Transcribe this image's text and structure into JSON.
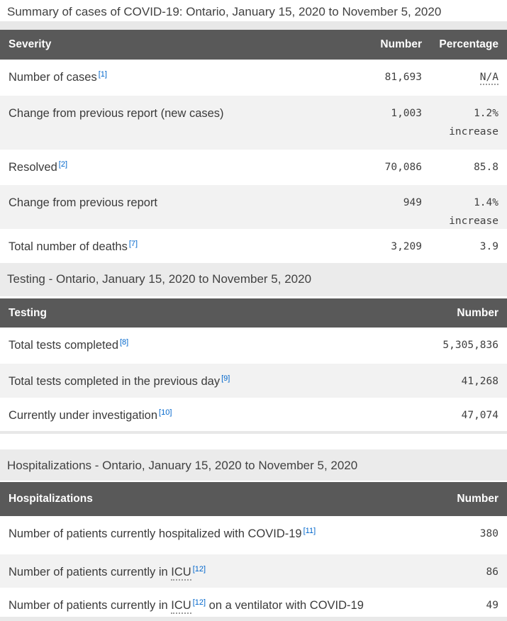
{
  "page_title": "Summary of cases of COVID-19: Ontario, January 15, 2020 to November 5, 2020",
  "colors": {
    "table_header_bg": "#595959",
    "table_header_text": "#ffffff",
    "row_alt_bg": "#f2f2f2",
    "caption_band_bg": "#ebebeb",
    "footnote_link": "#0066cc",
    "body_text": "#3b3b3b"
  },
  "severity_table": {
    "headers": {
      "col1": "Severity",
      "col2": "Number",
      "col3": "Percentage"
    },
    "rows": [
      {
        "label": "Number of cases",
        "footnote": "[1]",
        "number": "81,693",
        "pct_line1": "N/A"
      },
      {
        "label": "Change from previous report (new cases)",
        "number": "1,003",
        "pct_line1": "1.2%",
        "pct_line2": "increase"
      },
      {
        "label": "Resolved",
        "footnote": "[2]",
        "number": "70,086",
        "pct_line1": "85.8"
      },
      {
        "label": "Change from previous report",
        "number": "949",
        "pct_line1": "1.4%",
        "pct_line2": "increase"
      },
      {
        "label": "Total number of deaths",
        "footnote": "[7]",
        "number": "3,209",
        "pct_line1": "3.9"
      }
    ]
  },
  "testing_table": {
    "caption": "Testing - Ontario, January 15, 2020 to November 5, 2020",
    "headers": {
      "col1": "Testing",
      "col2": "Number"
    },
    "rows": [
      {
        "label": "Total tests completed",
        "footnote": "[8]",
        "number": "5,305,836"
      },
      {
        "label": "Total tests completed in the previous day",
        "footnote": "[9]",
        "number": "41,268"
      },
      {
        "label": "Currently under investigation",
        "footnote": "[10]",
        "number": "47,074"
      }
    ]
  },
  "hospitalizations_table": {
    "caption": "Hospitalizations - Ontario, January 15, 2020 to November 5, 2020",
    "headers": {
      "col1": "Hospitalizations",
      "col2": "Number"
    },
    "rows": [
      {
        "label": "Number of patients currently hospitalized with COVID-19",
        "footnote": "[11]",
        "number": "380"
      },
      {
        "label_prefix": "Number of patients currently in ",
        "abbr": "ICU",
        "footnote": "[12]",
        "number": "86"
      },
      {
        "label_prefix": "Number of patients currently in ",
        "abbr": "ICU",
        "footnote": "[12]",
        "label_suffix": " on a ventilator with COVID-19",
        "number": "49"
      }
    ]
  }
}
